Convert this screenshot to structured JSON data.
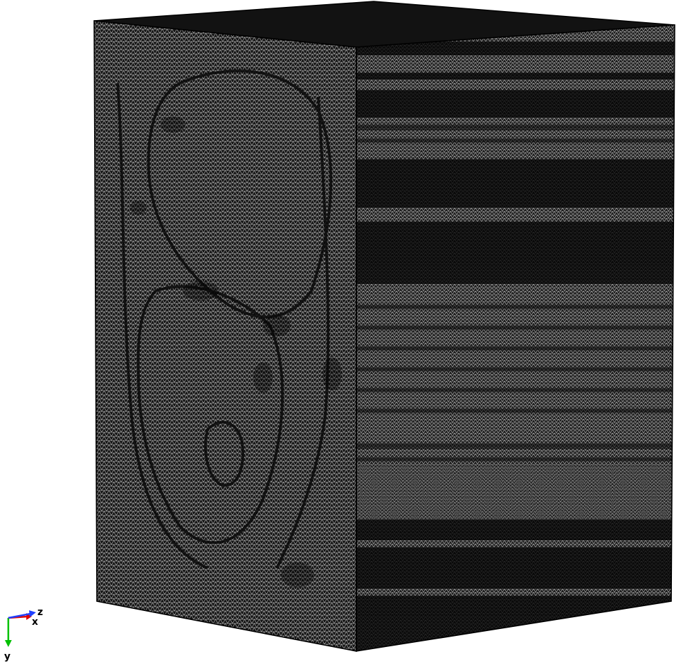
{
  "scene": {
    "background_color": "#ffffff",
    "mesh_line_color": "#d8d8d8",
    "mesh_fill_color": "#161616",
    "top_face_color": "#141414",
    "edge_color": "#000000"
  },
  "axes_triad": {
    "x": {
      "label": "x",
      "color": "#e00000"
    },
    "y": {
      "label": "y",
      "color": "#00c000"
    },
    "z": {
      "label": "z",
      "color": "#2040ff"
    }
  }
}
